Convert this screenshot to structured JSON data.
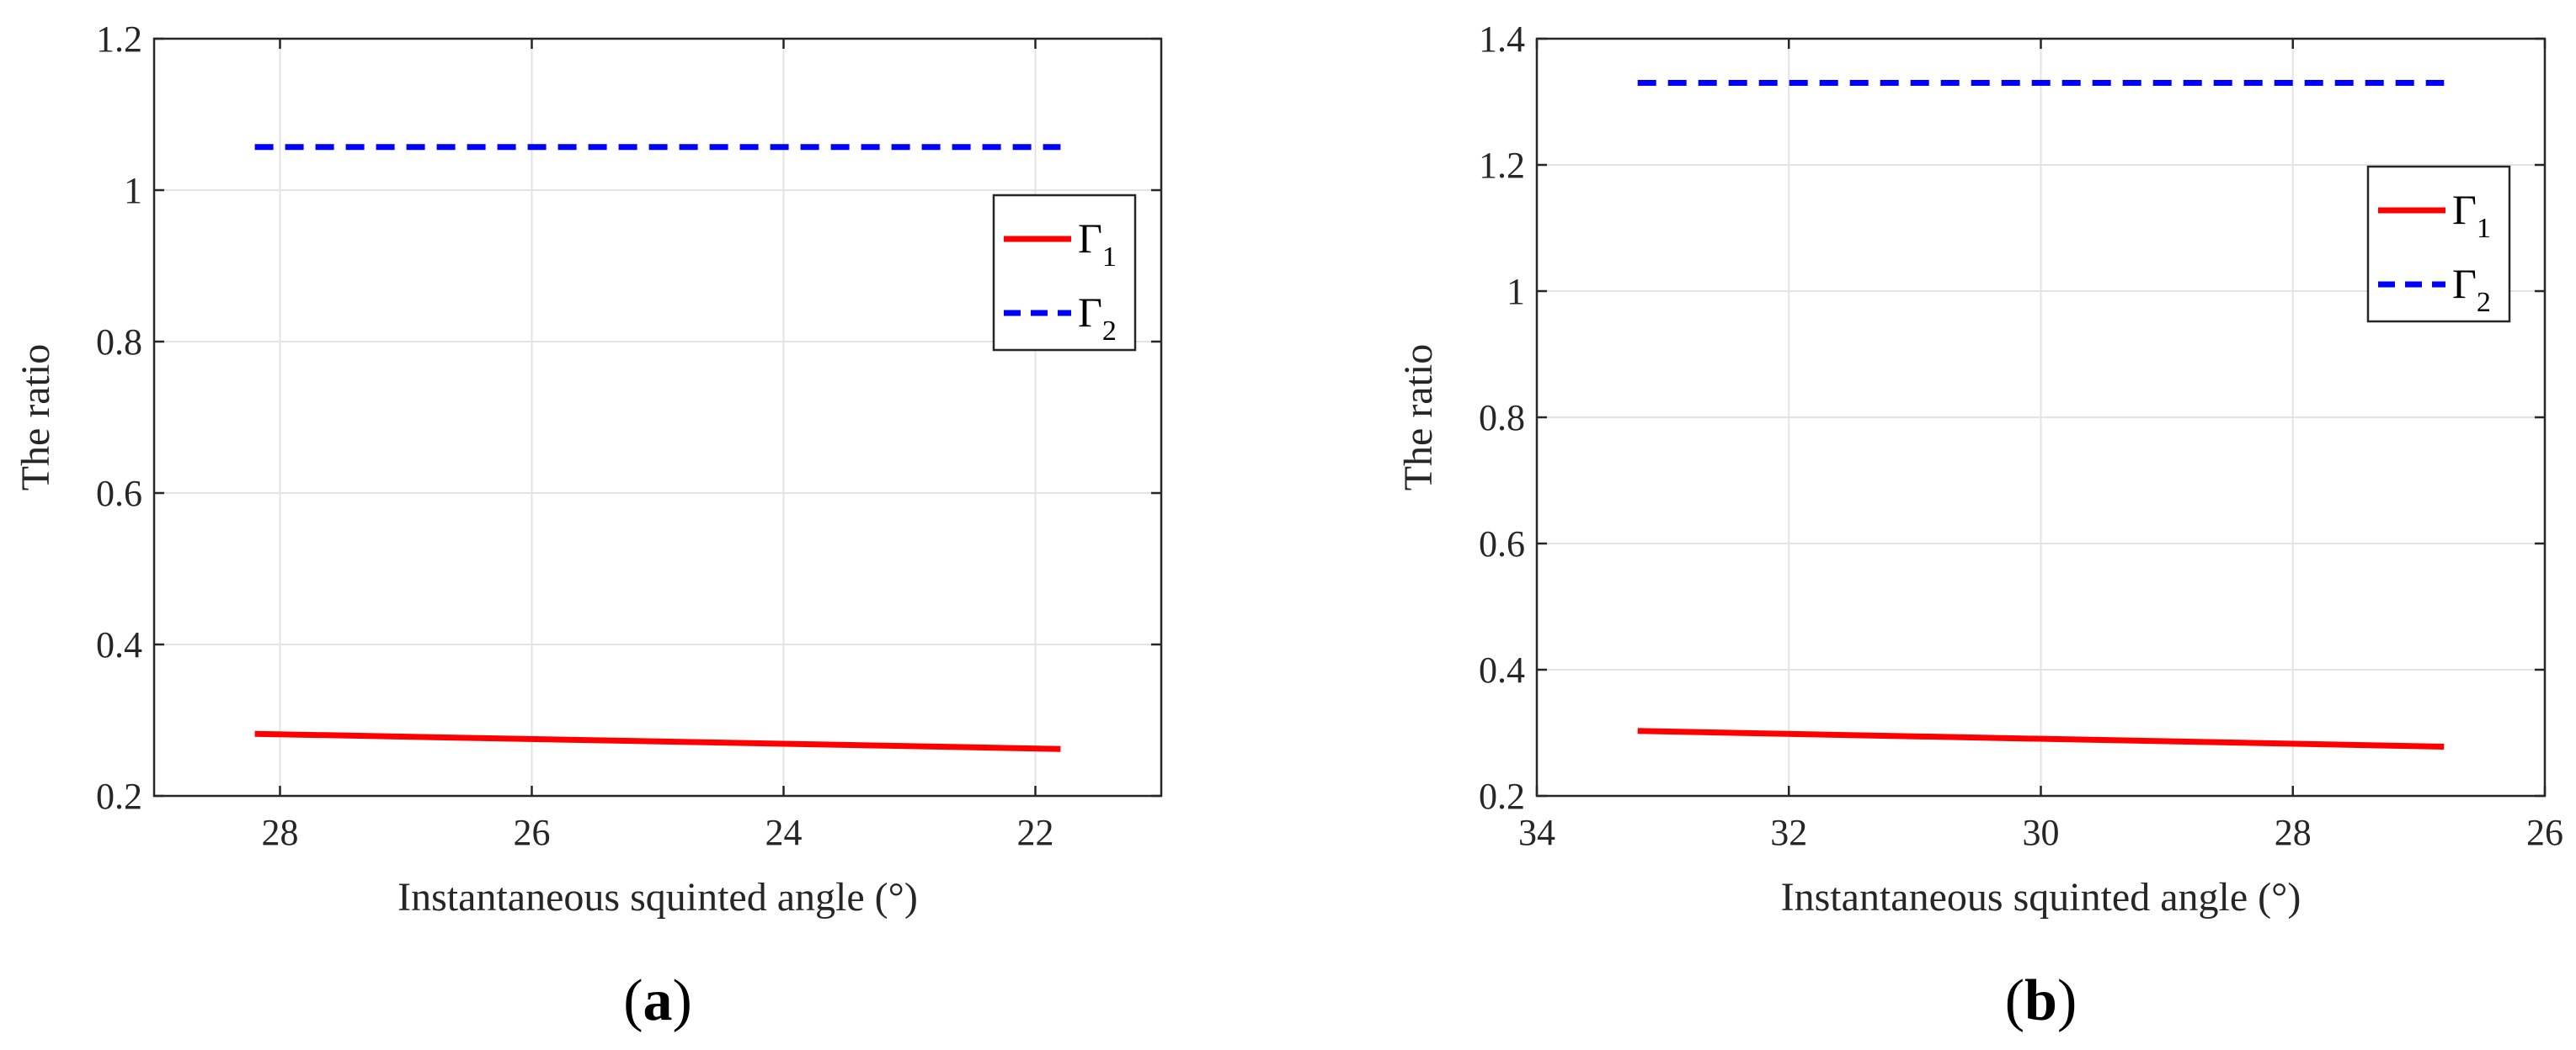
{
  "colors": {
    "gamma1": "#ff0000",
    "gamma2": "#0000ff",
    "grid": "#e3e3e3",
    "axis": "#262626"
  },
  "chart_data": [
    {
      "type": "line",
      "panel_label": "(a)",
      "panel_letter": "a",
      "xlabel": "Instantaneous squinted angle (°)",
      "ylabel": "The ratio",
      "xlim": [
        29,
        21
      ],
      "ylim": [
        0.2,
        1.2
      ],
      "x_reversed": true,
      "xticks": [
        28,
        26,
        24,
        22
      ],
      "yticks": [
        0.2,
        0.4,
        0.6,
        0.8,
        1,
        1.2
      ],
      "xtick_labels": [
        "28",
        "26",
        "24",
        "22"
      ],
      "ytick_labels": [
        "0.2",
        "0.4",
        "0.6",
        "0.8",
        "1",
        "1.2"
      ],
      "grid": true,
      "legend_position": "right",
      "series": [
        {
          "name": "Γ1",
          "base": "Γ",
          "sub": "1",
          "style": "solid",
          "x": [
            28.2,
            21.8
          ],
          "y": [
            0.282,
            0.262
          ]
        },
        {
          "name": "Γ2",
          "base": "Γ",
          "sub": "2",
          "style": "dashed",
          "x": [
            28.2,
            21.8
          ],
          "y": [
            1.057,
            1.057
          ]
        }
      ]
    },
    {
      "type": "line",
      "panel_label": "(b)",
      "panel_letter": "b",
      "xlabel": "Instantaneous squinted angle (°)",
      "ylabel": "The ratio",
      "xlim": [
        34,
        26
      ],
      "ylim": [
        0.2,
        1.4
      ],
      "x_reversed": true,
      "xticks": [
        34,
        32,
        30,
        28,
        26
      ],
      "yticks": [
        0.2,
        0.4,
        0.6,
        0.8,
        1,
        1.2,
        1.4
      ],
      "xtick_labels": [
        "34",
        "32",
        "30",
        "28",
        "26"
      ],
      "ytick_labels": [
        "0.2",
        "0.4",
        "0.6",
        "0.8",
        "1",
        "1.2",
        "1.4"
      ],
      "grid": true,
      "legend_position": "top-right",
      "series": [
        {
          "name": "Γ1",
          "base": "Γ",
          "sub": "1",
          "style": "solid",
          "x": [
            33.2,
            26.8
          ],
          "y": [
            0.303,
            0.278
          ]
        },
        {
          "name": "Γ2",
          "base": "Γ",
          "sub": "2",
          "style": "dashed",
          "x": [
            33.2,
            26.8
          ],
          "y": [
            1.33,
            1.33
          ]
        }
      ]
    }
  ]
}
